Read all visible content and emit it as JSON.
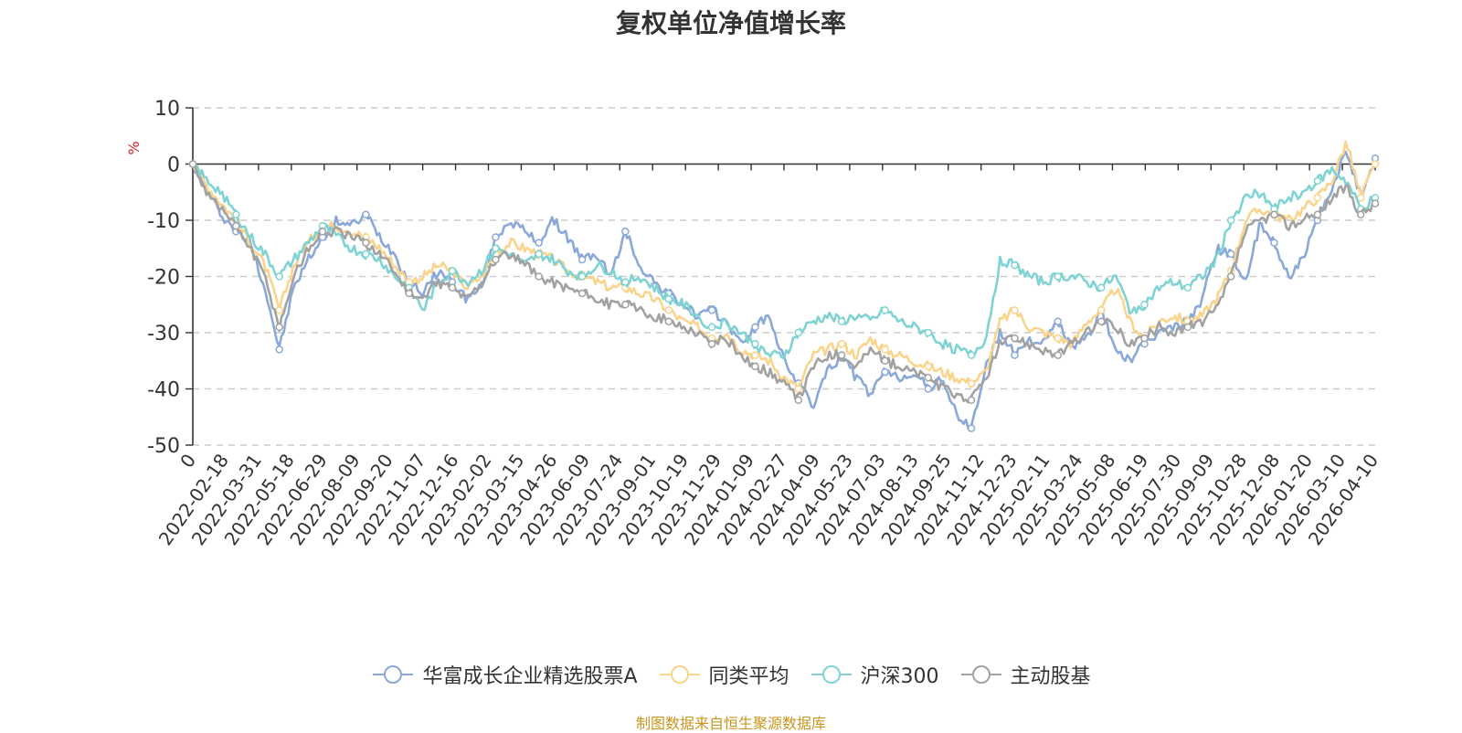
{
  "chart_data": {
    "type": "line",
    "title": "复权单位净值增长率",
    "ylabel": "%",
    "xlabel": "",
    "ylim": [
      -50,
      10
    ],
    "yticks": [
      10,
      0,
      -10,
      -20,
      -30,
      -40,
      -50
    ],
    "x_tick_labels": [
      "0",
      "2022-02-18",
      "2022-03-31",
      "2022-05-18",
      "2022-06-29",
      "2022-08-09",
      "2022-09-20",
      "2022-11-07",
      "2022-12-16",
      "2023-02-02",
      "2023-03-15",
      "2023-04-26",
      "2023-06-09",
      "2023-07-24",
      "2023-09-01",
      "2023-10-19",
      "2023-11-29",
      "2024-01-09",
      "2024-02-27",
      "2024-04-09",
      "2024-05-23",
      "2024-07-03",
      "2024-08-13",
      "2024-09-25",
      "2024-11-12",
      "2024-12-23",
      "2025-02-11",
      "2025-03-24",
      "2025-05-08",
      "2025-06-19",
      "2025-07-30",
      "2025-09-09",
      "2025-10-28",
      "2025-12-08",
      "2026-01-20",
      "2026-03-10",
      "2026-04-10"
    ],
    "grid": true,
    "legend_position": "bottom-center",
    "series": [
      {
        "name": "华富成长企业精选股票A",
        "color": "#8aa8d8",
        "values": [
          0,
          -5,
          -9,
          -12,
          -14,
          -22,
          -33,
          -22,
          -17,
          -13,
          -10,
          -11,
          -9,
          -13,
          -16,
          -21,
          -23,
          -19,
          -21,
          -24,
          -22,
          -13,
          -10,
          -12,
          -14,
          -10,
          -13,
          -17,
          -16,
          -20,
          -12,
          -18,
          -21,
          -23,
          -25,
          -27,
          -26,
          -28,
          -32,
          -29,
          -27,
          -35,
          -39,
          -43,
          -37,
          -34,
          -38,
          -41,
          -37,
          -38,
          -37,
          -40,
          -38,
          -45,
          -47,
          -36,
          -30,
          -34,
          -31,
          -32,
          -28,
          -33,
          -31,
          -26,
          -33,
          -35,
          -32,
          -30,
          -29,
          -28,
          -24,
          -15,
          -16,
          -21,
          -11,
          -14,
          -20,
          -17,
          -10,
          -5,
          3,
          -6,
          1
        ]
      },
      {
        "name": "同类平均",
        "color": "#fad48c",
        "values": [
          0,
          -4,
          -7,
          -10,
          -14,
          -18,
          -26,
          -18,
          -14,
          -11,
          -11,
          -12,
          -13,
          -15,
          -18,
          -21,
          -20,
          -18,
          -19,
          -22,
          -20,
          -16,
          -14,
          -15,
          -16,
          -17,
          -19,
          -20,
          -21,
          -22,
          -22,
          -23,
          -24,
          -26,
          -28,
          -29,
          -31,
          -30,
          -33,
          -34,
          -35,
          -38,
          -40,
          -34,
          -33,
          -32,
          -34,
          -31,
          -33,
          -34,
          -35,
          -36,
          -37,
          -38,
          -39,
          -37,
          -28,
          -26,
          -29,
          -30,
          -31,
          -32,
          -28,
          -26,
          -22,
          -28,
          -31,
          -28,
          -27,
          -28,
          -27,
          -24,
          -19,
          -10,
          -8,
          -9,
          -10,
          -8,
          -6,
          -3,
          4,
          -6,
          0
        ]
      },
      {
        "name": "沪深300",
        "color": "#7fd3d3",
        "values": [
          0,
          -3,
          -5,
          -9,
          -13,
          -16,
          -20,
          -17,
          -14,
          -11,
          -13,
          -15,
          -16,
          -17,
          -20,
          -22,
          -26,
          -21,
          -19,
          -21,
          -19,
          -15,
          -16,
          -18,
          -16,
          -17,
          -19,
          -20,
          -18,
          -19,
          -21,
          -20,
          -22,
          -24,
          -25,
          -27,
          -29,
          -28,
          -30,
          -32,
          -34,
          -34,
          -30,
          -28,
          -27,
          -28,
          -27,
          -28,
          -26,
          -28,
          -29,
          -30,
          -32,
          -33,
          -34,
          -31,
          -17,
          -18,
          -20,
          -21,
          -20,
          -20,
          -21,
          -22,
          -20,
          -26,
          -25,
          -22,
          -21,
          -22,
          -20,
          -17,
          -10,
          -6,
          -5,
          -8,
          -6,
          -5,
          -3,
          -1,
          -3,
          -8,
          -6
        ]
      },
      {
        "name": "主动股基",
        "color": "#a2a2a2",
        "values": [
          0,
          -5,
          -8,
          -11,
          -15,
          -20,
          -29,
          -20,
          -15,
          -12,
          -12,
          -13,
          -14,
          -16,
          -19,
          -23,
          -24,
          -21,
          -22,
          -24,
          -21,
          -17,
          -16,
          -18,
          -20,
          -21,
          -22,
          -23,
          -24,
          -25,
          -25,
          -26,
          -27,
          -28,
          -29,
          -30,
          -32,
          -31,
          -34,
          -36,
          -37,
          -39,
          -42,
          -36,
          -34,
          -34,
          -36,
          -33,
          -35,
          -36,
          -37,
          -38,
          -40,
          -41,
          -42,
          -38,
          -32,
          -31,
          -32,
          -33,
          -34,
          -32,
          -30,
          -28,
          -29,
          -32,
          -31,
          -29,
          -30,
          -29,
          -28,
          -26,
          -20,
          -12,
          -10,
          -9,
          -11,
          -10,
          -9,
          -6,
          -4,
          -9,
          -7
        ]
      }
    ]
  },
  "source_text": "制图数据来自恒生聚源数据库"
}
